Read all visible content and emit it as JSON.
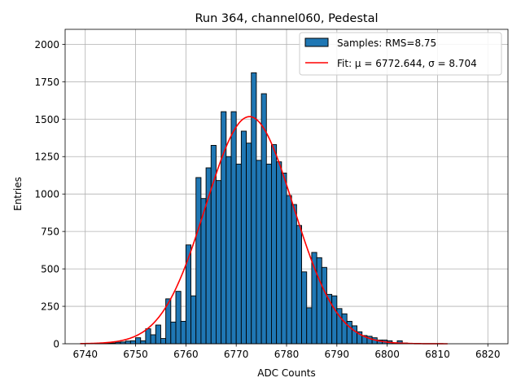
{
  "chart_data": {
    "type": "bar",
    "title": "Run 364, channel060, Pedestal",
    "xlabel": "ADC Counts",
    "ylabel": "Entries",
    "xlim": [
      6736,
      6824
    ],
    "ylim": [
      0,
      2100
    ],
    "xticks": [
      6740,
      6750,
      6760,
      6770,
      6780,
      6790,
      6800,
      6810,
      6820
    ],
    "yticks": [
      0,
      250,
      500,
      750,
      1000,
      1250,
      1500,
      1750,
      2000
    ],
    "grid": true,
    "legend_position": "top-right",
    "bin_width": 1,
    "bin_starts": [
      6742,
      6743,
      6744,
      6745,
      6746,
      6747,
      6748,
      6749,
      6750,
      6751,
      6752,
      6753,
      6754,
      6755,
      6756,
      6757,
      6758,
      6759,
      6760,
      6761,
      6762,
      6763,
      6764,
      6765,
      6766,
      6767,
      6768,
      6769,
      6770,
      6771,
      6772,
      6773,
      6774,
      6775,
      6776,
      6777,
      6778,
      6779,
      6780,
      6781,
      6782,
      6783,
      6784,
      6785,
      6786,
      6787,
      6788,
      6789,
      6790,
      6791,
      6792,
      6793,
      6794,
      6795,
      6796,
      6797,
      6798,
      6799,
      6800,
      6801,
      6802,
      6803,
      6804
    ],
    "counts": [
      3,
      5,
      5,
      5,
      10,
      12,
      18,
      20,
      40,
      20,
      100,
      60,
      125,
      35,
      300,
      145,
      350,
      150,
      660,
      320,
      1110,
      970,
      1175,
      1325,
      1090,
      1550,
      1250,
      1550,
      1200,
      1420,
      1340,
      1810,
      1225,
      1670,
      1200,
      1330,
      1215,
      1140,
      990,
      930,
      790,
      480,
      240,
      610,
      575,
      510,
      330,
      320,
      235,
      200,
      150,
      120,
      80,
      55,
      50,
      40,
      25,
      25,
      20,
      5,
      20,
      5,
      3
    ],
    "series": [
      {
        "name": "Samples: RMS=8.75",
        "kind": "hist",
        "color": "#1f77b4",
        "edge": "#000000"
      },
      {
        "name": "Fit: μ = 6772.644, σ = 8.704",
        "kind": "line",
        "color": "#ff0000",
        "mu": 6772.644,
        "sigma": 8.704,
        "peak": 1517,
        "x_range": [
          6739,
          6812
        ]
      }
    ]
  }
}
